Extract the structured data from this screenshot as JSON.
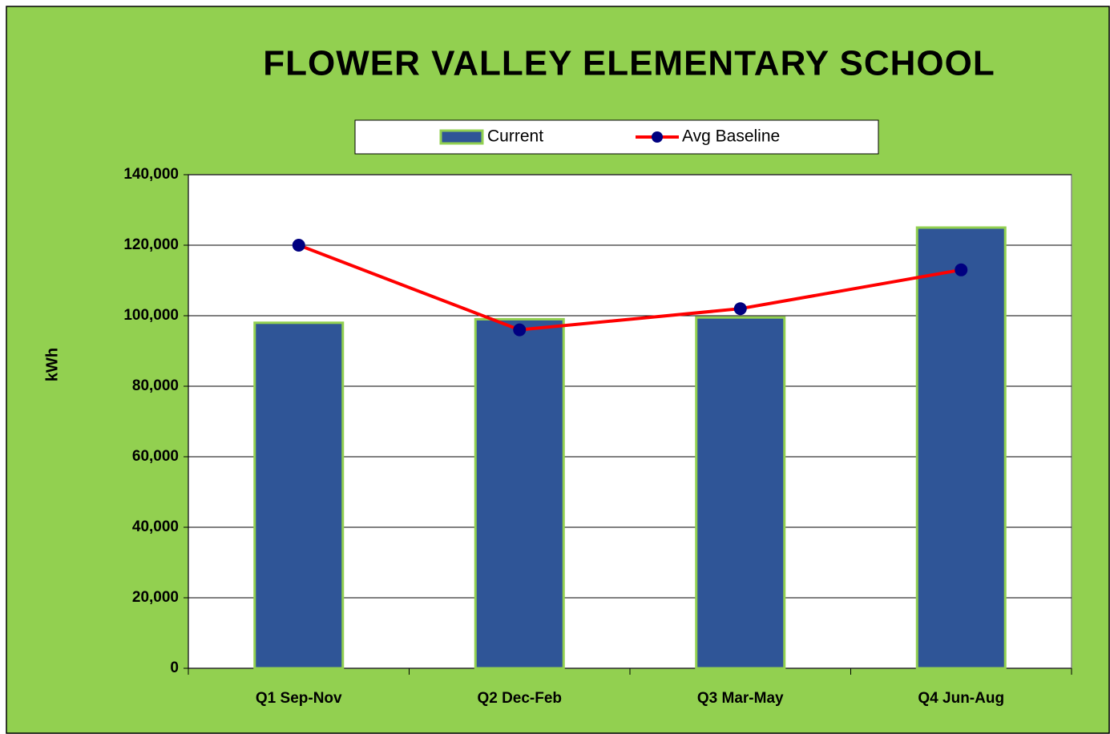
{
  "chart_data": {
    "type": "bar",
    "title": "FLOWER VALLEY ELEMENTARY SCHOOL",
    "y_label": "kWh",
    "categories": [
      "Q1 Sep-Nov",
      "Q2 Dec-Feb",
      "Q3 Mar-May",
      "Q4 Jun-Aug"
    ],
    "series": [
      {
        "name": "Current",
        "type": "bar",
        "color": "#2f5597",
        "values": [
          98000,
          99000,
          99500,
          125000
        ]
      },
      {
        "name": "Avg Baseline",
        "type": "line",
        "color": "#ff0000",
        "marker_color": "#000080",
        "values": [
          120000,
          96000,
          102000,
          113000
        ]
      }
    ],
    "ylim": [
      0,
      140000
    ],
    "yticks": [
      0,
      {
        "value": 20000,
        "label": "20,000"
      },
      {
        "value": 40000,
        "label": "40,000"
      },
      {
        "value": 60000,
        "label": "60,000"
      },
      {
        "value": 80000,
        "label": "80,000"
      },
      {
        "value": 100000,
        "label": "100,000"
      },
      {
        "value": 120000,
        "label": "120,000"
      },
      {
        "value": 140000,
        "label": "140,000"
      }
    ],
    "grid": true,
    "legend": "top",
    "background": "#92d050"
  }
}
